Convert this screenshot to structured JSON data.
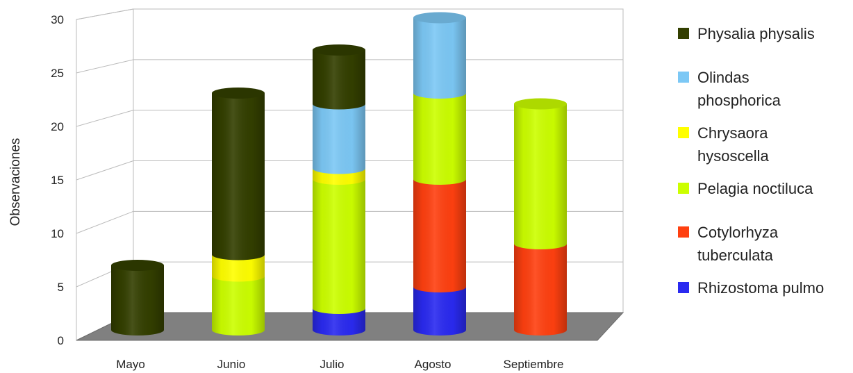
{
  "chart_data": {
    "type": "bar",
    "stacked": true,
    "style": "3d-cylinder",
    "categories": [
      "Mayo",
      "Junio",
      "Julio",
      "Agosto",
      "Septiembre"
    ],
    "ylabel": "Observaciones",
    "xlabel": "",
    "ylim": [
      0,
      30
    ],
    "yticks": [
      0,
      5,
      10,
      15,
      20,
      25,
      30
    ],
    "grid": true,
    "legend_position": "right",
    "series": [
      {
        "name": "Rhizostoma pulmo",
        "color": "#2a2af0",
        "values": [
          0,
          0,
          2,
          4,
          0
        ]
      },
      {
        "name": "Cotylorhyza tuberculata",
        "color": "#ff4010",
        "values": [
          0,
          0,
          0,
          10,
          8
        ]
      },
      {
        "name": "Pelagia noctiluca",
        "color": "#ccff00",
        "values": [
          0,
          5,
          12,
          8,
          13
        ]
      },
      {
        "name": "Chrysaora hysoscella",
        "color": "#ffff00",
        "values": [
          0,
          2,
          1,
          0,
          0
        ]
      },
      {
        "name": "Olindas phosphorica",
        "color": "#7cc8f5",
        "values": [
          0,
          0,
          6,
          7,
          0
        ]
      },
      {
        "name": "Physalia physalis",
        "color": "#333f00",
        "values": [
          6,
          15,
          5,
          0,
          0
        ]
      }
    ]
  },
  "legend": [
    {
      "lines": [
        "Physalia physalis"
      ],
      "color": "#333f00",
      "icon": "square"
    },
    {
      "lines": [
        "Olindas",
        "phosphorica"
      ],
      "color": "#7cc8f5",
      "icon": "square"
    },
    {
      "lines": [
        "Chrysaora",
        "hysoscella"
      ],
      "color": "#ffff00",
      "icon": "square"
    },
    {
      "lines": [
        "Pelagia noctiluca"
      ],
      "color": "#ccff00",
      "icon": "square"
    },
    {
      "lines": [
        "Cotylorhyza",
        "tuberculata"
      ],
      "color": "#ff4010",
      "icon": "square"
    },
    {
      "lines": [
        "Rhizostoma pulmo"
      ],
      "color": "#2a2af0",
      "icon": "square"
    }
  ]
}
